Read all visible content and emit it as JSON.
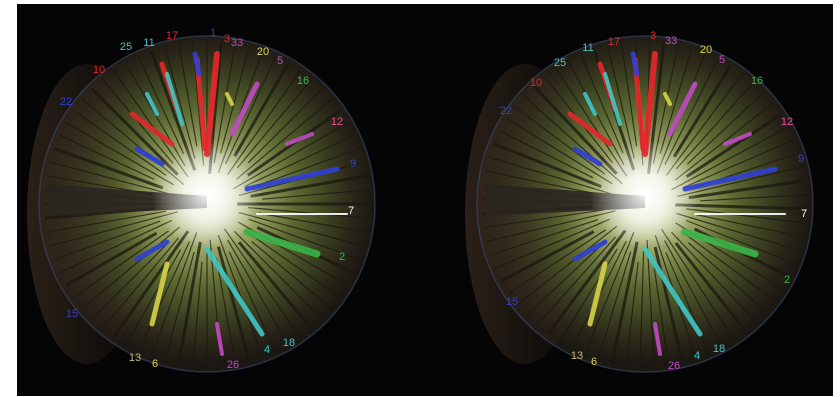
{
  "colors": {
    "background": "#050505",
    "red": "#e8262a",
    "blue": "#2f3fd6",
    "cyan": "#3fc7c9",
    "magenta": "#c24bc6",
    "yellow": "#d8d24a",
    "green": "#3bb54a",
    "white": "#ffffff",
    "tan": "#c9b57a",
    "pink": "#e94d9b"
  },
  "panels": [
    {
      "name": "left",
      "labels": [
        {
          "text": "25",
          "color": "cyan"
        },
        {
          "text": "11",
          "color": "cyan"
        },
        {
          "text": "17",
          "color": "red"
        },
        {
          "text": "1",
          "color": "blue"
        },
        {
          "text": "3",
          "color": "red"
        },
        {
          "text": "33",
          "color": "magenta"
        },
        {
          "text": "20",
          "color": "yellow"
        },
        {
          "text": "5",
          "color": "magenta"
        },
        {
          "text": "16",
          "color": "green"
        },
        {
          "text": "10",
          "color": "red"
        },
        {
          "text": "22",
          "color": "blue"
        },
        {
          "text": "12",
          "color": "pink"
        },
        {
          "text": "9",
          "color": "blue"
        },
        {
          "text": "7",
          "color": "white"
        },
        {
          "text": "2",
          "color": "green"
        },
        {
          "text": "18",
          "color": "cyan"
        },
        {
          "text": "4",
          "color": "cyan"
        },
        {
          "text": "26",
          "color": "magenta"
        },
        {
          "text": "13",
          "color": "tan"
        },
        {
          "text": "6",
          "color": "yellow"
        },
        {
          "text": "15",
          "color": "blue"
        }
      ]
    },
    {
      "name": "right",
      "labels": [
        {
          "text": "25",
          "color": "cyan"
        },
        {
          "text": "11",
          "color": "cyan"
        },
        {
          "text": "17",
          "color": "red"
        },
        {
          "text": "3",
          "color": "red"
        },
        {
          "text": "33",
          "color": "magenta"
        },
        {
          "text": "20",
          "color": "yellow"
        },
        {
          "text": "5",
          "color": "magenta"
        },
        {
          "text": "16",
          "color": "green"
        },
        {
          "text": "10",
          "color": "red"
        },
        {
          "text": "22",
          "color": "blue"
        },
        {
          "text": "12",
          "color": "pink"
        },
        {
          "text": "9",
          "color": "blue"
        },
        {
          "text": "7",
          "color": "white"
        },
        {
          "text": "2",
          "color": "green"
        },
        {
          "text": "18",
          "color": "cyan"
        },
        {
          "text": "4",
          "color": "cyan"
        },
        {
          "text": "26",
          "color": "magenta"
        },
        {
          "text": "13",
          "color": "tan"
        },
        {
          "text": "6",
          "color": "yellow"
        },
        {
          "text": "15",
          "color": "blue"
        }
      ]
    }
  ]
}
